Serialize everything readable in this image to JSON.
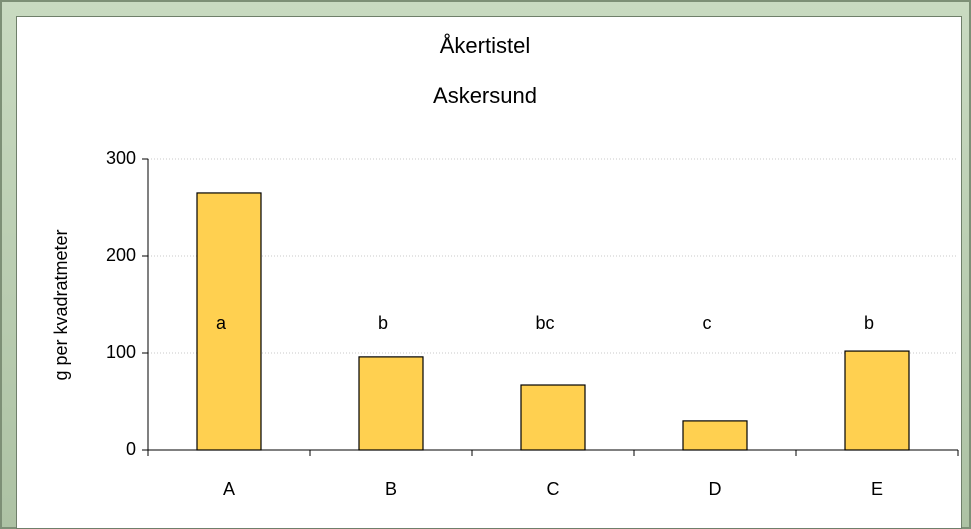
{
  "chart_data": {
    "type": "bar",
    "title": "Åkertistel",
    "subtitle": "Askersund",
    "y_label": "g per kvadratmeter",
    "categories": [
      "A",
      "B",
      "C",
      "D",
      "E"
    ],
    "values": [
      265,
      96,
      67,
      30,
      102
    ],
    "annotations": [
      "a",
      "b",
      "bc",
      "c",
      "b"
    ],
    "color": "#ffd050",
    "ylim": [
      0,
      300
    ],
    "yticks": [
      0,
      100,
      200,
      300
    ],
    "grid": true
  }
}
